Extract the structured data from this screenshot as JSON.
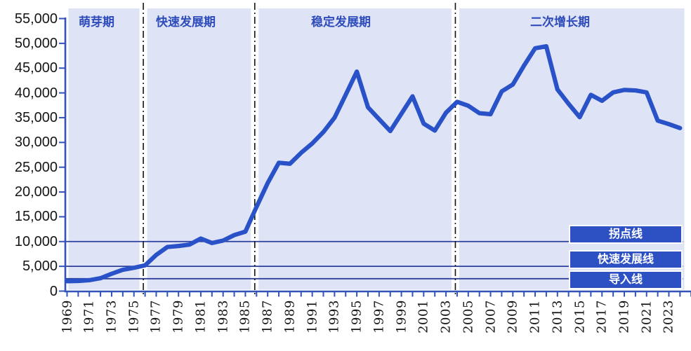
{
  "chart_data": {
    "type": "line",
    "title": "",
    "years": [
      1969,
      1970,
      1971,
      1972,
      1973,
      1974,
      1975,
      1976,
      1977,
      1978,
      1979,
      1980,
      1981,
      1982,
      1983,
      1984,
      1985,
      1986,
      1987,
      1988,
      1989,
      1990,
      1991,
      1992,
      1993,
      1994,
      1995,
      1996,
      1997,
      1998,
      1999,
      2000,
      2001,
      2002,
      2003,
      2004,
      2005,
      2006,
      2007,
      2008,
      2009,
      2010,
      2011,
      2012,
      2013,
      2014,
      2015,
      2016,
      2017,
      2018,
      2019,
      2020,
      2021,
      2022,
      2023,
      2024
    ],
    "values": [
      2000,
      2050,
      2200,
      2600,
      3500,
      4300,
      4700,
      5200,
      7300,
      8900,
      9100,
      9400,
      10600,
      9700,
      10200,
      11300,
      12000,
      17000,
      21800,
      25900,
      25700,
      27900,
      29800,
      32100,
      35000,
      39600,
      44300,
      37100,
      34700,
      32300,
      35800,
      39300,
      33800,
      32400,
      36000,
      38200,
      37400,
      35900,
      35700,
      40300,
      41700,
      45500,
      49000,
      49400,
      40700,
      37800,
      35100,
      39600,
      38400,
      40100,
      40600,
      40500,
      40100,
      34400,
      33700,
      32900
    ],
    "ylim": [
      0,
      55000
    ],
    "ytick_step": 5000,
    "x_label_every": 2,
    "grid": false,
    "legend_position": "none",
    "phases": [
      {
        "label": "萌芽期",
        "start_year": 1969,
        "end_year": 1976
      },
      {
        "label": "快速发展期",
        "start_year": 1976,
        "end_year": 1986
      },
      {
        "label": "稳定发展期",
        "start_year": 1986,
        "end_year": 2004
      },
      {
        "label": "二次增长期",
        "start_year": 2004,
        "end_year": 2024
      }
    ],
    "reference_lines": [
      {
        "label": "拐点线",
        "value": 10000
      },
      {
        "label": "快速发展线",
        "value": 5000
      },
      {
        "label": "导入线",
        "value": 2500
      }
    ]
  },
  "colors": {
    "background": "#ffffff",
    "plot_bg": "#dfe3f6",
    "line": "#2a52c8",
    "axis": "#3353b8",
    "reference_line": "#2c3f9b",
    "divider": "#141414",
    "label_box_bg": "#2d50c3",
    "label_box_text": "#ffffff",
    "phase_label_text": "#2e4cbb",
    "tick_label": "#141414"
  }
}
